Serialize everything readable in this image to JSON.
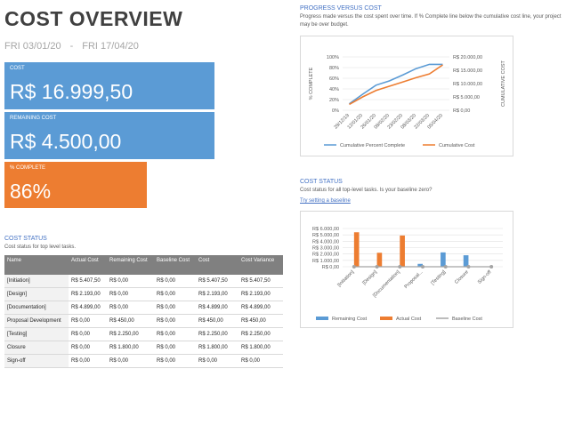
{
  "header": {
    "title": "COST OVERVIEW",
    "start": "FRI 03/01/20",
    "separator": "-",
    "end": "FRI 17/04/20"
  },
  "cards": [
    {
      "label": "COST",
      "value": "R$ 16.999,50"
    },
    {
      "label": "REMAINING COST",
      "value": "R$ 4.500,00"
    },
    {
      "label": "% COMPLETE",
      "value": "86%"
    }
  ],
  "cost_table": {
    "title": "COST STATUS",
    "subtitle": "Cost status for top level tasks.",
    "columns": [
      "Name",
      "Actual Cost",
      "Remaining Cost",
      "Baseline Cost",
      "Cost",
      "Cost Variance"
    ],
    "rows": [
      [
        "[Initiation]",
        "R$ 5.407,50",
        "R$ 0,00",
        "R$ 0,00",
        "R$ 5.407,50",
        "R$ 5.407,50"
      ],
      [
        "[Design]",
        "R$ 2.193,00",
        "R$ 0,00",
        "R$ 0,00",
        "R$ 2.193,00",
        "R$ 2.193,00"
      ],
      [
        "[Documentation]",
        "R$ 4.899,00",
        "R$ 0,00",
        "R$ 0,00",
        "R$ 4.899,00",
        "R$ 4.899,00"
      ],
      [
        "Proposal Development",
        "R$ 0,00",
        "R$ 450,00",
        "R$ 0,00",
        "R$ 450,00",
        "R$ 450,00"
      ],
      [
        "[Testing]",
        "R$ 0,00",
        "R$ 2.250,00",
        "R$ 0,00",
        "R$ 2.250,00",
        "R$ 2.250,00"
      ],
      [
        "Closure",
        "R$ 0,00",
        "R$ 1.800,00",
        "R$ 0,00",
        "R$ 1.800,00",
        "R$ 1.800,00"
      ],
      [
        "Sign-off",
        "R$ 0,00",
        "R$ 0,00",
        "R$ 0,00",
        "R$ 0,00",
        "R$ 0,00"
      ]
    ]
  },
  "chart_data": [
    {
      "type": "line",
      "title": "PROGRESS VERSUS COST",
      "subtitle": "Progress made versus the cost spent over time. If % Complete line below the cumulative cost line, your project may be over budget.",
      "categories": [
        "29/12/19",
        "12/01/20",
        "26/01/20",
        "09/02/20",
        "23/02/20",
        "08/03/20",
        "22/03/20",
        "05/04/20"
      ],
      "ylabel": "% COMPLETE",
      "y2label": "CUMULATIVE COST",
      "ylim": [
        0,
        100
      ],
      "yticks": [
        {
          "value": 0,
          "label": "0%"
        },
        {
          "value": 20,
          "label": "20%"
        },
        {
          "value": 40,
          "label": "40%"
        },
        {
          "value": 60,
          "label": "60%"
        },
        {
          "value": 80,
          "label": "80%"
        },
        {
          "value": 100,
          "label": "100%"
        }
      ],
      "y2lim": [
        0,
        20000
      ],
      "y2ticks": [
        {
          "value": 0,
          "label": "R$ 0,00"
        },
        {
          "value": 5000,
          "label": "R$ 5.000,00"
        },
        {
          "value": 10000,
          "label": "R$ 10.000,00"
        },
        {
          "value": 15000,
          "label": "R$ 15.000,00"
        },
        {
          "value": 20000,
          "label": "R$ 20.000,00"
        }
      ],
      "series": [
        {
          "name": "Cumulative Percent Complete",
          "color": "#5b9bd5",
          "values": [
            12,
            30,
            47,
            55,
            66,
            78,
            86,
            86
          ]
        },
        {
          "name": "Cumulative Cost",
          "color": "#ed7d31",
          "axis": "y2",
          "values": [
            2200,
            5000,
            7400,
            9000,
            10600,
            12200,
            13600,
            17000
          ]
        }
      ]
    },
    {
      "type": "bar",
      "title": "COST STATUS",
      "subtitle": "Cost status for all top-level tasks. Is your baseline zero?",
      "link": "Try setting a baseline",
      "categories": [
        "[Initiation]",
        "[Design]",
        "[Documentation]",
        "Proposal...",
        "[Testing]",
        "Closure",
        "Sign-off"
      ],
      "ylim": [
        0,
        6000
      ],
      "yticks": [
        {
          "value": 0,
          "label": "R$ 0,00"
        },
        {
          "value": 1000,
          "label": "R$ 1.000,00"
        },
        {
          "value": 2000,
          "label": "R$ 2.000,00"
        },
        {
          "value": 3000,
          "label": "R$ 3.000,00"
        },
        {
          "value": 4000,
          "label": "R$ 4.000,00"
        },
        {
          "value": 5000,
          "label": "R$ 5.000,00"
        },
        {
          "value": 6000,
          "label": "R$ 6.000,00"
        }
      ],
      "series": [
        {
          "name": "Remaining Cost",
          "color": "#5b9bd5",
          "values": [
            0,
            0,
            0,
            450,
            2250,
            1800,
            0
          ]
        },
        {
          "name": "Actual Cost",
          "color": "#ed7d31",
          "values": [
            5407.5,
            2193,
            4899,
            0,
            0,
            0,
            0
          ]
        },
        {
          "name": "Baseline Cost",
          "color": "#a5a5a5",
          "type": "line",
          "values": [
            0,
            0,
            0,
            0,
            0,
            0,
            0
          ]
        }
      ]
    }
  ]
}
